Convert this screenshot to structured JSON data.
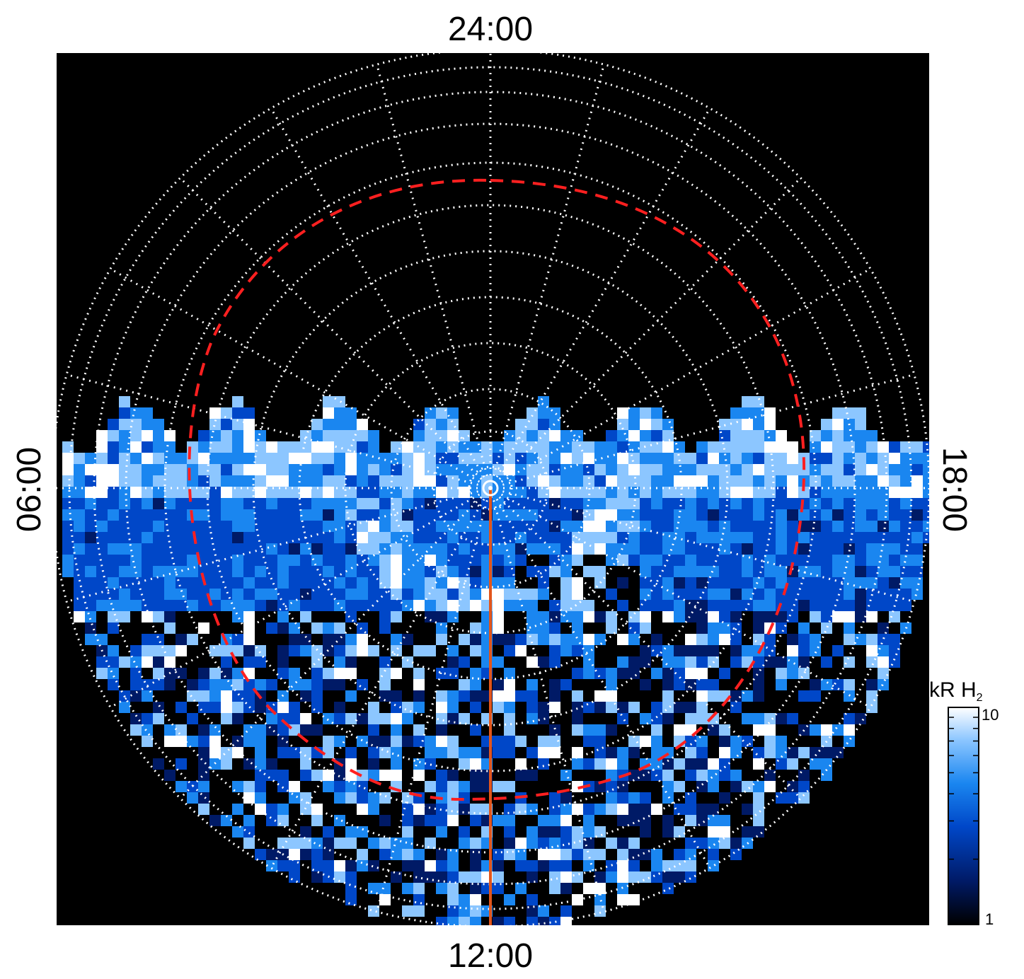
{
  "chart_data": {
    "type": "heatmap",
    "projection": "polar",
    "local_time_labels": {
      "top": "24:00",
      "bottom": "12:00",
      "left": "06:00",
      "right": "18:00"
    },
    "colorbar": {
      "title": "kR H",
      "title_subscript": "2",
      "scale": "log",
      "min_label": "1",
      "max_label": "10",
      "range": [
        1,
        10
      ]
    },
    "grid": {
      "style": "dotted",
      "color": "#ffffff",
      "meridian_step_hours": 1
    },
    "reference_oval": {
      "style": "dashed",
      "color": "#ff2020"
    },
    "meridian_line": {
      "local_time": "12:00",
      "color": "#e2551b"
    },
    "background_color": "#000000",
    "colormap": [
      "#000000",
      "#001a66",
      "#0047c8",
      "#1a86f0",
      "#8cc6ff",
      "#ffffff"
    ]
  }
}
